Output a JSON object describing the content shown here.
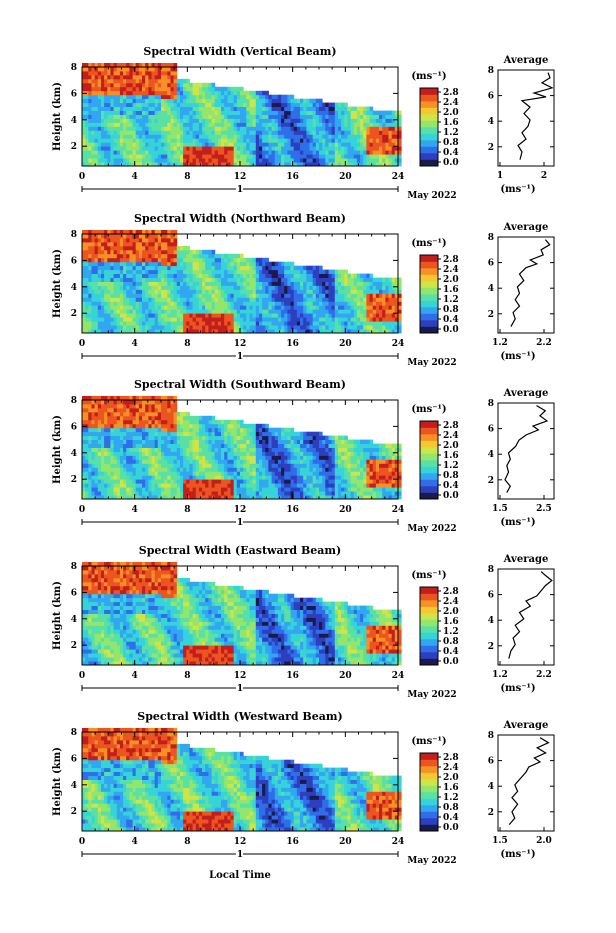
{
  "x_axis_label": "Local Time",
  "date_label": "May 2022",
  "day_label": "1",
  "colorbar_unit": "(ms⁻¹)",
  "average_title": "Average",
  "average_unit": "(ms⁻¹)",
  "colormap": [
    "#1a1a4d",
    "#2d3fbf",
    "#2f6ee8",
    "#32a6f0",
    "#36d3d9",
    "#59e0a6",
    "#93e66d",
    "#cde44a",
    "#f4c830",
    "#f79025",
    "#ec5520",
    "#c21e1e"
  ],
  "chart_data": [
    {
      "type": "heatmap",
      "title": "Spectral Width (Vertical Beam)",
      "xlabel": "",
      "ylabel": "Height (km)",
      "xlim": [
        0,
        24
      ],
      "xticks": [
        0,
        4,
        8,
        12,
        16,
        20,
        24
      ],
      "ylim": [
        0.5,
        8
      ],
      "yticks": [
        2,
        4,
        6,
        8
      ],
      "colorbar": {
        "ticks": [
          "2.8",
          "2.4",
          "2.0",
          "1.6",
          "1.2",
          "0.8",
          "0.4",
          "0.0"
        ],
        "range": [
          0.0,
          2.8
        ]
      },
      "average_profile": {
        "xticks": [
          "1",
          "2"
        ],
        "xlim": [
          0.9,
          2.3
        ],
        "ylim": [
          0.5,
          8
        ],
        "points": [
          [
            1.45,
            1.0
          ],
          [
            1.5,
            1.6
          ],
          [
            1.4,
            2.1
          ],
          [
            1.6,
            2.6
          ],
          [
            1.5,
            3.1
          ],
          [
            1.65,
            3.6
          ],
          [
            1.7,
            4.1
          ],
          [
            1.55,
            4.6
          ],
          [
            1.7,
            5.1
          ],
          [
            1.5,
            5.6
          ],
          [
            2.1,
            5.9
          ],
          [
            1.8,
            6.2
          ],
          [
            2.25,
            6.6
          ],
          [
            2.0,
            7.0
          ],
          [
            2.2,
            7.4
          ],
          [
            2.15,
            7.8
          ]
        ]
      }
    },
    {
      "type": "heatmap",
      "title": "Spectral Width (Northward Beam)",
      "xlabel": "",
      "ylabel": "Height (km)",
      "xlim": [
        0,
        24
      ],
      "xticks": [
        0,
        4,
        8,
        12,
        16,
        20,
        24
      ],
      "ylim": [
        0.5,
        8
      ],
      "yticks": [
        2,
        4,
        6,
        8
      ],
      "colorbar": {
        "ticks": [
          "2.8",
          "2.4",
          "2.0",
          "1.6",
          "1.2",
          "0.8",
          "0.4",
          "0.0"
        ],
        "range": [
          0.0,
          2.8
        ]
      },
      "average_profile": {
        "xticks": [
          "1.2",
          "2.2"
        ],
        "xlim": [
          1.1,
          2.4
        ],
        "ylim": [
          0.5,
          8
        ],
        "points": [
          [
            1.4,
            1.0
          ],
          [
            1.5,
            1.6
          ],
          [
            1.45,
            2.1
          ],
          [
            1.6,
            2.6
          ],
          [
            1.5,
            3.1
          ],
          [
            1.6,
            3.6
          ],
          [
            1.55,
            4.1
          ],
          [
            1.7,
            4.6
          ],
          [
            1.6,
            5.1
          ],
          [
            1.75,
            5.6
          ],
          [
            2.0,
            5.9
          ],
          [
            1.85,
            6.2
          ],
          [
            2.15,
            6.6
          ],
          [
            2.1,
            7.0
          ],
          [
            2.3,
            7.4
          ],
          [
            2.2,
            7.8
          ]
        ]
      }
    },
    {
      "type": "heatmap",
      "title": "Spectral Width (Southward Beam)",
      "xlabel": "",
      "ylabel": "Height (km)",
      "xlim": [
        0,
        24
      ],
      "xticks": [
        0,
        4,
        8,
        12,
        16,
        20,
        24
      ],
      "ylim": [
        0.5,
        8
      ],
      "yticks": [
        2,
        4,
        6,
        8
      ],
      "colorbar": {
        "ticks": [
          "2.8",
          "2.4",
          "2.0",
          "1.6",
          "1.2",
          "0.8",
          "0.4",
          "0.0"
        ],
        "range": [
          0.0,
          2.8
        ]
      },
      "average_profile": {
        "xticks": [
          "1.5",
          "2.5"
        ],
        "xlim": [
          1.2,
          2.8
        ],
        "ylim": [
          0.5,
          8
        ],
        "points": [
          [
            1.45,
            1.0
          ],
          [
            1.55,
            1.5
          ],
          [
            1.4,
            2.0
          ],
          [
            1.5,
            2.6
          ],
          [
            1.45,
            3.1
          ],
          [
            1.55,
            3.6
          ],
          [
            1.5,
            4.1
          ],
          [
            1.7,
            4.6
          ],
          [
            1.8,
            5.1
          ],
          [
            2.0,
            5.5
          ],
          [
            2.35,
            5.9
          ],
          [
            2.2,
            6.2
          ],
          [
            2.6,
            6.6
          ],
          [
            2.4,
            7.0
          ],
          [
            2.55,
            7.4
          ],
          [
            2.3,
            7.8
          ]
        ]
      }
    },
    {
      "type": "heatmap",
      "title": "Spectral Width (Eastward Beam)",
      "xlabel": "",
      "ylabel": "Height (km)",
      "xlim": [
        0,
        24
      ],
      "xticks": [
        0,
        4,
        8,
        12,
        16,
        20,
        24
      ],
      "ylim": [
        0.5,
        8
      ],
      "yticks": [
        2,
        4,
        6,
        8
      ],
      "colorbar": {
        "ticks": [
          "2.8",
          "2.4",
          "2.0",
          "1.6",
          "1.2",
          "0.8",
          "0.4",
          "0.0"
        ],
        "range": [
          0.0,
          2.8
        ]
      },
      "average_profile": {
        "xticks": [
          "1.2",
          "2.2"
        ],
        "xlim": [
          1.1,
          2.4
        ],
        "ylim": [
          0.5,
          8
        ],
        "points": [
          [
            1.35,
            1.0
          ],
          [
            1.4,
            1.6
          ],
          [
            1.5,
            2.1
          ],
          [
            1.45,
            2.6
          ],
          [
            1.6,
            3.1
          ],
          [
            1.5,
            3.6
          ],
          [
            1.7,
            4.1
          ],
          [
            1.6,
            4.6
          ],
          [
            1.85,
            5.1
          ],
          [
            1.75,
            5.5
          ],
          [
            2.0,
            5.9
          ],
          [
            2.1,
            6.3
          ],
          [
            2.2,
            6.7
          ],
          [
            2.35,
            7.1
          ],
          [
            2.2,
            7.5
          ],
          [
            2.1,
            7.8
          ]
        ]
      }
    },
    {
      "type": "heatmap",
      "title": "Spectral Width (Westward Beam)",
      "xlabel": "",
      "ylabel": "Height (km)",
      "xlim": [
        0,
        24
      ],
      "xticks": [
        0,
        4,
        8,
        12,
        16,
        20,
        24
      ],
      "ylim": [
        0.5,
        8
      ],
      "yticks": [
        2,
        4,
        6,
        8
      ],
      "colorbar": {
        "ticks": [
          "2.8",
          "2.4",
          "2.0",
          "1.6",
          "1.2",
          "0.8",
          "0.4",
          "0.0"
        ],
        "range": [
          0.0,
          2.8
        ]
      },
      "average_profile": {
        "xticks": [
          "1.5",
          "2.0"
        ],
        "xlim": [
          1.2,
          2.2
        ],
        "ylim": [
          0.5,
          8
        ],
        "points": [
          [
            1.4,
            1.0
          ],
          [
            1.5,
            1.5
          ],
          [
            1.45,
            2.0
          ],
          [
            1.55,
            2.6
          ],
          [
            1.45,
            3.1
          ],
          [
            1.55,
            3.6
          ],
          [
            1.5,
            4.1
          ],
          [
            1.6,
            4.6
          ],
          [
            1.7,
            5.1
          ],
          [
            1.75,
            5.5
          ],
          [
            1.95,
            5.9
          ],
          [
            1.85,
            6.2
          ],
          [
            2.05,
            6.6
          ],
          [
            1.9,
            7.0
          ],
          [
            2.1,
            7.4
          ],
          [
            1.95,
            7.8
          ]
        ]
      }
    }
  ]
}
